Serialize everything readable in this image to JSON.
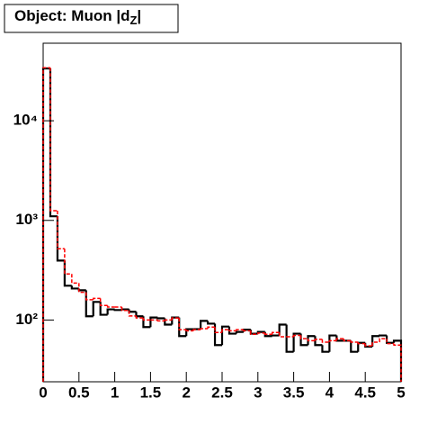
{
  "chart_data": {
    "type": "histogram",
    "title": "Object: Muon |dZ|",
    "bins": [
      0,
      0.1,
      0.2,
      0.3,
      0.4,
      0.5,
      0.6,
      0.7,
      0.8,
      0.9,
      1,
      1.1,
      1.2,
      1.3,
      1.4,
      1.5,
      1.6,
      1.7,
      1.8,
      1.9,
      2,
      2.1,
      2.2,
      2.3,
      2.4,
      2.5,
      2.6,
      2.7,
      2.8,
      2.9,
      3,
      3.1,
      3.2,
      3.3,
      3.4,
      3.5,
      3.6,
      3.7,
      3.8,
      3.9,
      4,
      4.1,
      4.2,
      4.3,
      4.4,
      4.5,
      4.6,
      4.7,
      4.8,
      4.9,
      5
    ],
    "series": [
      {
        "color": "#000000",
        "dashed": false,
        "values": [
          33500,
          1100,
          395,
          221,
          207,
          199,
          109,
          152,
          113,
          128,
          126,
          128,
          121,
          109,
          85,
          106,
          104,
          90,
          106,
          69,
          81,
          81,
          98,
          92,
          56,
          86,
          73,
          76,
          80,
          73,
          76,
          69,
          70,
          90,
          48,
          73,
          56,
          69,
          56,
          48,
          70,
          62,
          62,
          48,
          59,
          54,
          69,
          70,
          59,
          62
        ]
      },
      {
        "color": "#ff0000",
        "dashed": true,
        "values": [
          34000,
          1250,
          520,
          290,
          235,
          190,
          160,
          165,
          140,
          135,
          135,
          125,
          110,
          105,
          100,
          100,
          98,
          100,
          105,
          80,
          78,
          80,
          82,
          85,
          75,
          80,
          78,
          80,
          78,
          72,
          74,
          72,
          75,
          68,
          68,
          70,
          65,
          62,
          64,
          60,
          62,
          65,
          62,
          60,
          58,
          55,
          60,
          65,
          58,
          56
        ]
      }
    ],
    "xlim": [
      0,
      5
    ],
    "xticks": [
      0,
      0.5,
      1,
      1.5,
      2,
      2.5,
      3,
      3.5,
      4,
      4.5,
      5
    ],
    "ylim": [
      24,
      60000
    ],
    "log_y": true,
    "yticks": [
      {
        "value": 100,
        "label": "10²"
      },
      {
        "value": 1000,
        "label": "10³"
      },
      {
        "value": 10000,
        "label": "10⁴"
      }
    ]
  }
}
